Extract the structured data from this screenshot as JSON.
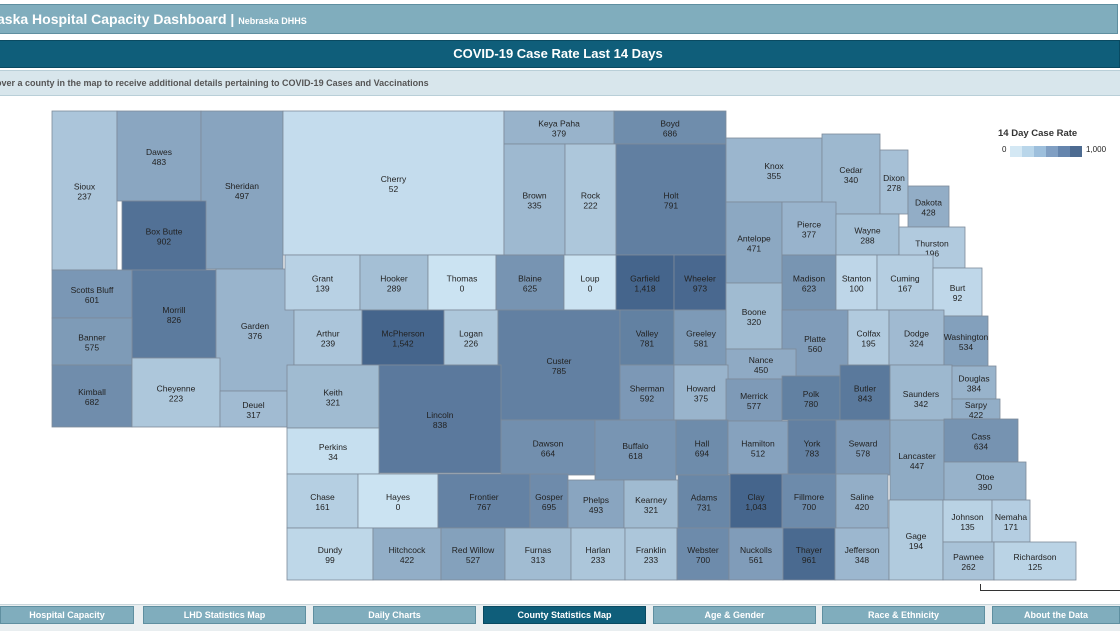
{
  "header": {
    "title": "aska Hospital Capacity Dashboard |",
    "subtitle": "Nebraska DHHS"
  },
  "map_title": "COVID-19 Case Rate Last 14 Days",
  "hint": "over a county in the map to receive additional details pertaining to COVID-19 Cases and Vaccinations",
  "legend": {
    "title": "14 Day Case Rate",
    "min_label": "0",
    "max_label": "1,000",
    "colors": [
      "#d4e8f4",
      "#b9d6ea",
      "#9dbfdc",
      "#809fc3",
      "#6585ad",
      "#4d6b91"
    ]
  },
  "palette": {
    "low": "#cbe3f2",
    "high": "#45658c",
    "outline": "#7d8a99"
  },
  "counties": [
    {
      "name": "Sioux",
      "value": "237"
    },
    {
      "name": "Dawes",
      "value": "483"
    },
    {
      "name": "Sheridan",
      "value": "497"
    },
    {
      "name": "Cherry",
      "value": "52"
    },
    {
      "name": "Keya Paha",
      "value": "379"
    },
    {
      "name": "Boyd",
      "value": "686"
    },
    {
      "name": "Box Butte",
      "value": "902"
    },
    {
      "name": "Brown",
      "value": "335"
    },
    {
      "name": "Rock",
      "value": "222"
    },
    {
      "name": "Holt",
      "value": "791"
    },
    {
      "name": "Knox",
      "value": "355"
    },
    {
      "name": "Cedar",
      "value": "340"
    },
    {
      "name": "Dixon",
      "value": "278"
    },
    {
      "name": "Dakota",
      "value": "428"
    },
    {
      "name": "Antelope",
      "value": "471"
    },
    {
      "name": "Pierce",
      "value": "377"
    },
    {
      "name": "Wayne",
      "value": "288"
    },
    {
      "name": "Thurston",
      "value": "196"
    },
    {
      "name": "Scotts Bluff",
      "value": "601"
    },
    {
      "name": "Morrill",
      "value": "826"
    },
    {
      "name": "Garden",
      "value": "376"
    },
    {
      "name": "Grant",
      "value": "139"
    },
    {
      "name": "Hooker",
      "value": "289"
    },
    {
      "name": "Thomas",
      "value": "0"
    },
    {
      "name": "Blaine",
      "value": "625"
    },
    {
      "name": "Loup",
      "value": "0"
    },
    {
      "name": "Garfield",
      "value": "1,418"
    },
    {
      "name": "Wheeler",
      "value": "973"
    },
    {
      "name": "Madison",
      "value": "623"
    },
    {
      "name": "Stanton",
      "value": "100"
    },
    {
      "name": "Cuming",
      "value": "167"
    },
    {
      "name": "Burt",
      "value": "92"
    },
    {
      "name": "Banner",
      "value": "575"
    },
    {
      "name": "Arthur",
      "value": "239"
    },
    {
      "name": "McPherson",
      "value": "1,542"
    },
    {
      "name": "Logan",
      "value": "226"
    },
    {
      "name": "Custer",
      "value": "785"
    },
    {
      "name": "Valley",
      "value": "781"
    },
    {
      "name": "Greeley",
      "value": "581"
    },
    {
      "name": "Boone",
      "value": "320"
    },
    {
      "name": "Platte",
      "value": "560"
    },
    {
      "name": "Colfax",
      "value": "195"
    },
    {
      "name": "Dodge",
      "value": "324"
    },
    {
      "name": "Washington",
      "value": "534"
    },
    {
      "name": "Nance",
      "value": "450"
    },
    {
      "name": "Kimball",
      "value": "682"
    },
    {
      "name": "Cheyenne",
      "value": "223"
    },
    {
      "name": "Deuel",
      "value": "317"
    },
    {
      "name": "Keith",
      "value": "321"
    },
    {
      "name": "Lincoln",
      "value": "838"
    },
    {
      "name": "Sherman",
      "value": "592"
    },
    {
      "name": "Howard",
      "value": "375"
    },
    {
      "name": "Merrick",
      "value": "577"
    },
    {
      "name": "Polk",
      "value": "780"
    },
    {
      "name": "Butler",
      "value": "843"
    },
    {
      "name": "Saunders",
      "value": "342"
    },
    {
      "name": "Douglas",
      "value": "384"
    },
    {
      "name": "Sarpy",
      "value": "422"
    },
    {
      "name": "Perkins",
      "value": "34"
    },
    {
      "name": "Dawson",
      "value": "664"
    },
    {
      "name": "Buffalo",
      "value": "618"
    },
    {
      "name": "Hall",
      "value": "694"
    },
    {
      "name": "Hamilton",
      "value": "512"
    },
    {
      "name": "York",
      "value": "783"
    },
    {
      "name": "Seward",
      "value": "578"
    },
    {
      "name": "Lancaster",
      "value": "447"
    },
    {
      "name": "Cass",
      "value": "634"
    },
    {
      "name": "Chase",
      "value": "161"
    },
    {
      "name": "Hayes",
      "value": "0"
    },
    {
      "name": "Frontier",
      "value": "767"
    },
    {
      "name": "Gosper",
      "value": "695"
    },
    {
      "name": "Phelps",
      "value": "493"
    },
    {
      "name": "Kearney",
      "value": "321"
    },
    {
      "name": "Adams",
      "value": "731"
    },
    {
      "name": "Clay",
      "value": "1,043"
    },
    {
      "name": "Fillmore",
      "value": "700"
    },
    {
      "name": "Saline",
      "value": "420"
    },
    {
      "name": "Otoe",
      "value": "390"
    },
    {
      "name": "Dundy",
      "value": "99"
    },
    {
      "name": "Hitchcock",
      "value": "422"
    },
    {
      "name": "Red Willow",
      "value": "527"
    },
    {
      "name": "Furnas",
      "value": "313"
    },
    {
      "name": "Harlan",
      "value": "233"
    },
    {
      "name": "Franklin",
      "value": "233"
    },
    {
      "name": "Webster",
      "value": "700"
    },
    {
      "name": "Nuckolls",
      "value": "561"
    },
    {
      "name": "Thayer",
      "value": "961"
    },
    {
      "name": "Jefferson",
      "value": "348"
    },
    {
      "name": "Gage",
      "value": "194"
    },
    {
      "name": "Johnson",
      "value": "135"
    },
    {
      "name": "Nemaha",
      "value": "171"
    },
    {
      "name": "Pawnee",
      "value": "262"
    },
    {
      "name": "Richardson",
      "value": "125"
    }
  ],
  "tabs": [
    "Hospital Capacity",
    "LHD Statistics Map",
    "Daily Charts",
    "County Statistics Map",
    "Age & Gender",
    "Race & Ethnicity",
    "About the Data"
  ],
  "active_tab": "County Statistics Map"
}
